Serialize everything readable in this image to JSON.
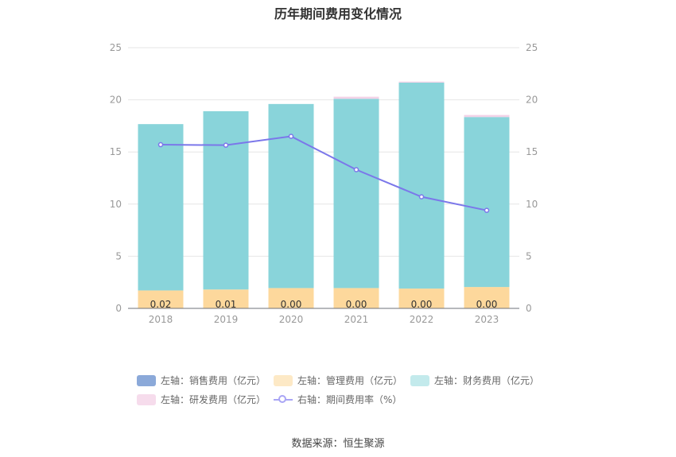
{
  "chart_data": {
    "type": "bar",
    "title": "历年期间费用变化情况",
    "categories": [
      "2018",
      "2019",
      "2020",
      "2021",
      "2022",
      "2023"
    ],
    "stacked": true,
    "left_axis": {
      "ylim": [
        0,
        25
      ],
      "ticks": [
        0,
        5,
        10,
        15,
        20,
        25
      ]
    },
    "right_axis": {
      "ylim": [
        0,
        25
      ],
      "ticks": [
        0,
        5,
        10,
        15,
        20,
        25
      ]
    },
    "series": [
      {
        "name": "左轴：销售费用（亿元）",
        "axis": "left",
        "type": "bar",
        "color": "#8ba9d9",
        "values": [
          0.02,
          0.01,
          0.0,
          0.0,
          0.0,
          0.0
        ],
        "data_labels": [
          "0.02",
          "0.01",
          "0.00",
          "0.00",
          "0.00",
          "0.00"
        ]
      },
      {
        "name": "左轴：管理费用（亿元）",
        "axis": "left",
        "type": "bar",
        "color": "#fdd89c",
        "values": [
          1.7,
          1.8,
          1.95,
          1.95,
          1.9,
          2.05
        ]
      },
      {
        "name": "左轴：财务费用（亿元）",
        "axis": "left",
        "type": "bar",
        "color": "#89d4da",
        "values": [
          15.95,
          17.1,
          17.65,
          18.15,
          19.75,
          16.3
        ]
      },
      {
        "name": "左轴：研发费用（亿元）",
        "axis": "left",
        "type": "bar",
        "color": "#f3d3e8",
        "values": [
          0.0,
          0.0,
          0.0,
          0.2,
          0.1,
          0.2
        ]
      },
      {
        "name": "右轴：期间费用率（%）",
        "axis": "right",
        "type": "line",
        "color": "#7b77ea",
        "values": [
          15.7,
          15.65,
          16.5,
          13.3,
          10.7,
          9.4
        ]
      }
    ],
    "legend_position": "bottom",
    "grid": true
  },
  "source": "数据来源：恒生聚源"
}
